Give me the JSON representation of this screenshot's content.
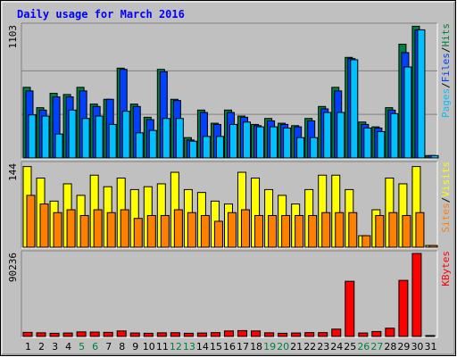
{
  "chart_data": {
    "type": "bar",
    "title": "Daily usage for March 2016",
    "categories": [
      "1",
      "2",
      "3",
      "4",
      "5",
      "6",
      "7",
      "8",
      "9",
      "10",
      "11",
      "12",
      "13",
      "14",
      "15",
      "16",
      "17",
      "18",
      "19",
      "20",
      "21",
      "22",
      "23",
      "24",
      "25",
      "26",
      "27",
      "28",
      "29",
      "30",
      "31"
    ],
    "weekend_days": [
      "5",
      "6",
      "12",
      "13",
      "19",
      "20",
      "26",
      "27"
    ],
    "colors": {
      "hits": "#008040",
      "files": "#0040ff",
      "pages": "#00c0ff",
      "visits": "#ffff00",
      "sites": "#ff8000",
      "kbytes": "#ff0000",
      "weekday_label": "#000000",
      "weekend_label": "#008040",
      "panel_bg": "#c0c0c0",
      "frame_bg": "#c0c0c0"
    },
    "panels": [
      {
        "id": "hits-files-pages",
        "ymax_label": "1103",
        "ymax": 1103,
        "legend": [
          {
            "text": "Pages",
            "color": "#00c0ff"
          },
          {
            "text": "/",
            "color": "#000000"
          },
          {
            "text": "Files",
            "color": "#0040ff"
          },
          {
            "text": "/",
            "color": "#000000"
          },
          {
            "text": "Hits",
            "color": "#008040"
          }
        ],
        "series": [
          {
            "name": "Hits",
            "color": "#008040",
            "values": [
              590,
              420,
              540,
              530,
              590,
              450,
              490,
              750,
              450,
              340,
              740,
              490,
              170,
              400,
              290,
              400,
              350,
              280,
              330,
              290,
              270,
              330,
              430,
              590,
              840,
              300,
              260,
              420,
              950,
              1100,
              20
            ]
          },
          {
            "name": "Files",
            "color": "#0040ff",
            "values": [
              560,
              400,
              510,
              510,
              560,
              430,
              490,
              740,
              430,
              320,
              720,
              480,
              150,
              380,
              280,
              380,
              340,
              270,
              310,
              280,
              260,
              310,
              410,
              560,
              830,
              280,
              250,
              400,
              880,
              1070,
              20
            ]
          },
          {
            "name": "Pages",
            "color": "#00c0ff",
            "values": [
              360,
              350,
              200,
              400,
              330,
              350,
              280,
              390,
              210,
              230,
              330,
              330,
              140,
              180,
              180,
              280,
              300,
              260,
              260,
              250,
              170,
              170,
              380,
              380,
              820,
              250,
              220,
              370,
              760,
              1070,
              20
            ]
          }
        ]
      },
      {
        "id": "visits-sites",
        "ymax_label": "144",
        "ymax": 144,
        "legend": [
          {
            "text": "Sites",
            "color": "#ff8000"
          },
          {
            "text": "/",
            "color": "#000000"
          },
          {
            "text": "Visits",
            "color": "#ffff00"
          }
        ],
        "series": [
          {
            "name": "Visits",
            "color": "#ffff00",
            "values": [
              140,
              120,
              80,
              110,
              90,
              125,
              105,
              120,
              100,
              105,
              110,
              130,
              100,
              95,
              80,
              75,
              130,
              120,
              100,
              90,
              75,
              100,
              125,
              125,
              100,
              20,
              65,
              120,
              110,
              140,
              3
            ]
          },
          {
            "name": "Sites",
            "color": "#ff8000",
            "values": [
              90,
              75,
              60,
              65,
              55,
              65,
              60,
              65,
              50,
              55,
              55,
              65,
              60,
              55,
              45,
              60,
              65,
              55,
              55,
              55,
              55,
              55,
              60,
              60,
              60,
              20,
              55,
              60,
              55,
              60,
              3
            ]
          }
        ]
      },
      {
        "id": "kbytes",
        "ymax_label": "90236",
        "ymax": 90236,
        "legend": [
          {
            "text": "KBytes",
            "color": "#ff0000"
          }
        ],
        "series": [
          {
            "name": "KBytes",
            "color": "#ff0000",
            "values": [
              4500,
              4000,
              3500,
              3800,
              5000,
              4800,
              4500,
              6000,
              3800,
              3500,
              4000,
              4100,
              3500,
              3800,
              4200,
              6000,
              6400,
              6000,
              4000,
              3500,
              3800,
              4200,
              4200,
              8000,
              60000,
              3800,
              5400,
              9000,
              61000,
              90236,
              1000
            ]
          }
        ]
      }
    ]
  }
}
